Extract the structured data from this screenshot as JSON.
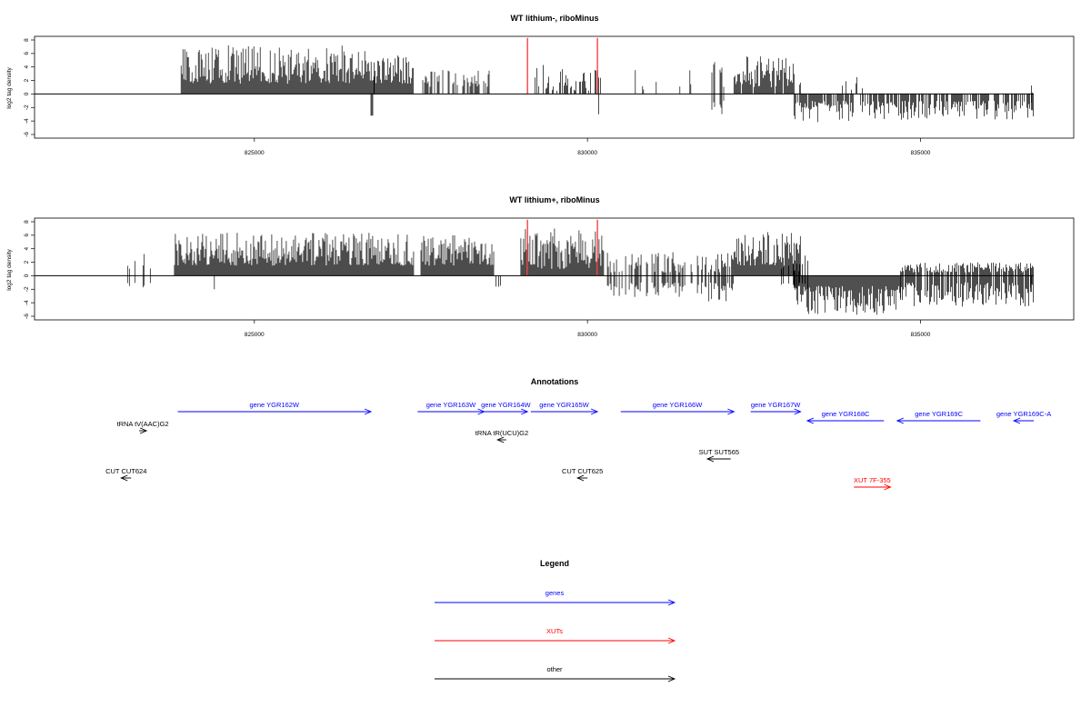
{
  "colors": {
    "gene": "#0000ff",
    "xut": "#ff0000",
    "other": "#000000",
    "highlight": "#ff3333"
  },
  "chart_data": [
    {
      "type": "bar",
      "title": "WT lithium-, riboMinus",
      "ylabel": "log2 tag density",
      "xlim": [
        821700,
        837300
      ],
      "ylim": [
        -6,
        8
      ],
      "xticks": [
        825000,
        830000,
        835000
      ],
      "xtick_labels": [
        "825000",
        "830000",
        "835000"
      ],
      "yticks": [
        -6,
        -4,
        -2,
        0,
        2,
        4,
        6,
        8
      ],
      "ytick_labels": [
        "-6",
        "-4",
        "-2",
        "0",
        "2",
        "4",
        "6",
        "8"
      ],
      "baseline_range": [
        821700,
        836700
      ],
      "highlight_bars": [
        {
          "x": 829100,
          "y": 8.3
        },
        {
          "x": 830150,
          "y": 8.3
        }
      ],
      "segments": [
        {
          "start": 823300,
          "end": 823450,
          "min": 0,
          "max": 3.6,
          "neg_min": 0,
          "neg_max": 0,
          "density": 0.05
        },
        {
          "start": 823900,
          "end": 826800,
          "min": 1.5,
          "max": 7.2,
          "neg_min": 0,
          "neg_max": 0,
          "density": 1
        },
        {
          "start": 826750,
          "end": 826800,
          "min": 0,
          "max": 0,
          "neg_min": -3.2,
          "neg_max": -3.2,
          "density": 0.3
        },
        {
          "start": 826800,
          "end": 827400,
          "min": 1.5,
          "max": 6.2,
          "neg_min": 0,
          "neg_max": 0,
          "density": 1
        },
        {
          "start": 827500,
          "end": 828600,
          "min": 1,
          "max": 3.6,
          "neg_min": 0,
          "neg_max": 0,
          "density": 0.45
        },
        {
          "start": 828900,
          "end": 829000,
          "min": 0.5,
          "max": 1.2,
          "neg_min": 0,
          "neg_max": 0,
          "density": 0.2
        },
        {
          "start": 829200,
          "end": 830200,
          "min": 0.5,
          "max": 4.8,
          "neg_min": 0,
          "neg_max": 0,
          "density": 0.55
        },
        {
          "start": 830100,
          "end": 830200,
          "min": 0,
          "max": 0,
          "neg_min": -3,
          "neg_max": -3,
          "density": 0.3
        },
        {
          "start": 830500,
          "end": 831700,
          "min": 0.5,
          "max": 3.8,
          "neg_min": 0,
          "neg_max": 0,
          "density": 0.18
        },
        {
          "start": 831800,
          "end": 832100,
          "min": 0.5,
          "max": 5,
          "neg_min": -3,
          "neg_max": -1,
          "density": 0.6
        },
        {
          "start": 832200,
          "end": 833200,
          "min": 1,
          "max": 5.6,
          "neg_min": 0,
          "neg_max": 0,
          "density": 0.9
        },
        {
          "start": 833100,
          "end": 834000,
          "min": 0,
          "max": 0,
          "neg_min": -4.2,
          "neg_max": -1,
          "density": 0.75
        },
        {
          "start": 833800,
          "end": 834200,
          "min": 0.5,
          "max": 2.8,
          "neg_min": 0,
          "neg_max": 0,
          "density": 0.15
        },
        {
          "start": 834100,
          "end": 836700,
          "min": 0,
          "max": 0,
          "neg_min": -3.8,
          "neg_max": -1,
          "density": 0.7
        },
        {
          "start": 836650,
          "end": 836700,
          "min": 0,
          "max": 2.4,
          "neg_min": -2.4,
          "neg_max": -2.4,
          "density": 0.3
        }
      ]
    },
    {
      "type": "bar",
      "title": "WT lithium+, riboMinus",
      "ylabel": "log2 tag density",
      "xlim": [
        821700,
        837300
      ],
      "ylim": [
        -6,
        8
      ],
      "xticks": [
        825000,
        830000,
        835000
      ],
      "xtick_labels": [
        "825000",
        "830000",
        "835000"
      ],
      "yticks": [
        -6,
        -4,
        -2,
        0,
        2,
        4,
        6,
        8
      ],
      "ytick_labels": [
        "-6",
        "-4",
        "-2",
        "0",
        "2",
        "4",
        "6",
        "8"
      ],
      "baseline_range": [
        821700,
        836700
      ],
      "highlight_bars": [
        {
          "x": 829100,
          "y": 8.3
        },
        {
          "x": 830150,
          "y": 8.3
        }
      ],
      "segments": [
        {
          "start": 823000,
          "end": 823450,
          "min": 0.5,
          "max": 3.8,
          "neg_min": -2.6,
          "neg_max": -1,
          "density": 0.25
        },
        {
          "start": 823800,
          "end": 827400,
          "min": 1.5,
          "max": 6.4,
          "neg_min": 0,
          "neg_max": 0,
          "density": 1
        },
        {
          "start": 824400,
          "end": 824450,
          "min": 0,
          "max": 0,
          "neg_min": -2,
          "neg_max": -2,
          "density": 0.3
        },
        {
          "start": 827500,
          "end": 828600,
          "min": 1.5,
          "max": 6.2,
          "neg_min": 0,
          "neg_max": 0,
          "density": 1
        },
        {
          "start": 828600,
          "end": 828700,
          "min": 0,
          "max": 0,
          "neg_min": -2,
          "neg_max": -1,
          "density": 0.4
        },
        {
          "start": 829000,
          "end": 830250,
          "min": 1,
          "max": 7,
          "neg_min": 0,
          "neg_max": 0,
          "density": 1
        },
        {
          "start": 830300,
          "end": 831700,
          "min": 0.5,
          "max": 3.6,
          "neg_min": -3.2,
          "neg_max": -1,
          "density": 0.5
        },
        {
          "start": 831700,
          "end": 832200,
          "min": 0.5,
          "max": 3.4,
          "neg_min": -4,
          "neg_max": -1,
          "density": 0.7
        },
        {
          "start": 832200,
          "end": 833200,
          "min": 1.5,
          "max": 6.5,
          "neg_min": 0,
          "neg_max": 0,
          "density": 1
        },
        {
          "start": 832900,
          "end": 833400,
          "min": 0.5,
          "max": 3.4,
          "neg_min": -2,
          "neg_max": -1,
          "density": 0.3
        },
        {
          "start": 833100,
          "end": 834700,
          "min": 0,
          "max": 0,
          "neg_min": -5.8,
          "neg_max": -1.5,
          "density": 1
        },
        {
          "start": 834700,
          "end": 836700,
          "min": 0.5,
          "max": 2,
          "neg_min": -4.6,
          "neg_max": -1,
          "density": 0.75
        },
        {
          "start": 836650,
          "end": 836700,
          "min": 0,
          "max": 3.4,
          "neg_min": -2.4,
          "neg_max": -2.4,
          "density": 0.3
        }
      ]
    }
  ],
  "annotations": {
    "title": "Annotations",
    "features": [
      {
        "label": "gene YGR162W",
        "type": "gene",
        "start": 823850,
        "end": 826750,
        "strand": "+",
        "row": 0
      },
      {
        "label": "gene YGR163W",
        "type": "gene",
        "start": 827450,
        "end": 828450,
        "strand": "+",
        "row": 0
      },
      {
        "label": "gene YGR164W",
        "type": "gene",
        "start": 828450,
        "end": 829100,
        "strand": "+",
        "row": 0
      },
      {
        "label": "gene YGR165W",
        "type": "gene",
        "start": 829150,
        "end": 830150,
        "strand": "+",
        "row": 0
      },
      {
        "label": "gene YGR166W",
        "type": "gene",
        "start": 830500,
        "end": 832200,
        "strand": "+",
        "row": 0
      },
      {
        "label": "gene YGR167W",
        "type": "gene",
        "start": 832450,
        "end": 833200,
        "strand": "+",
        "row": 0
      },
      {
        "label": "gene YGR168C",
        "type": "gene",
        "start": 833300,
        "end": 834450,
        "strand": "-",
        "row": 1
      },
      {
        "label": "gene YGR169C",
        "type": "gene",
        "start": 834650,
        "end": 835900,
        "strand": "-",
        "row": 1
      },
      {
        "label": "gene YGR169C-A",
        "type": "gene",
        "start": 836400,
        "end": 836700,
        "strand": "-",
        "row": 1
      },
      {
        "label": "tRNA tV(AAC)G2",
        "type": "other",
        "start": 823270,
        "end": 823380,
        "strand": "+",
        "row": 2
      },
      {
        "label": "tRNA tR(UCU)G2",
        "type": "other",
        "start": 828650,
        "end": 828780,
        "strand": "-",
        "row": 3
      },
      {
        "label": "SUT SUT565",
        "type": "other",
        "start": 831800,
        "end": 832150,
        "strand": "-",
        "row": 4
      },
      {
        "label": "CUT CUT624",
        "type": "other",
        "start": 823000,
        "end": 823150,
        "strand": "-",
        "row": 5
      },
      {
        "label": "CUT CUT625",
        "type": "other",
        "start": 829850,
        "end": 830000,
        "strand": "-",
        "row": 5
      },
      {
        "label": "XUT 7F-355",
        "type": "xut",
        "start": 834000,
        "end": 834550,
        "strand": "+",
        "row": 6
      }
    ]
  },
  "legend": {
    "title": "Legend",
    "items": [
      {
        "label": "genes",
        "type": "gene"
      },
      {
        "label": "XUTs",
        "type": "xut"
      },
      {
        "label": "other",
        "type": "other"
      }
    ]
  }
}
